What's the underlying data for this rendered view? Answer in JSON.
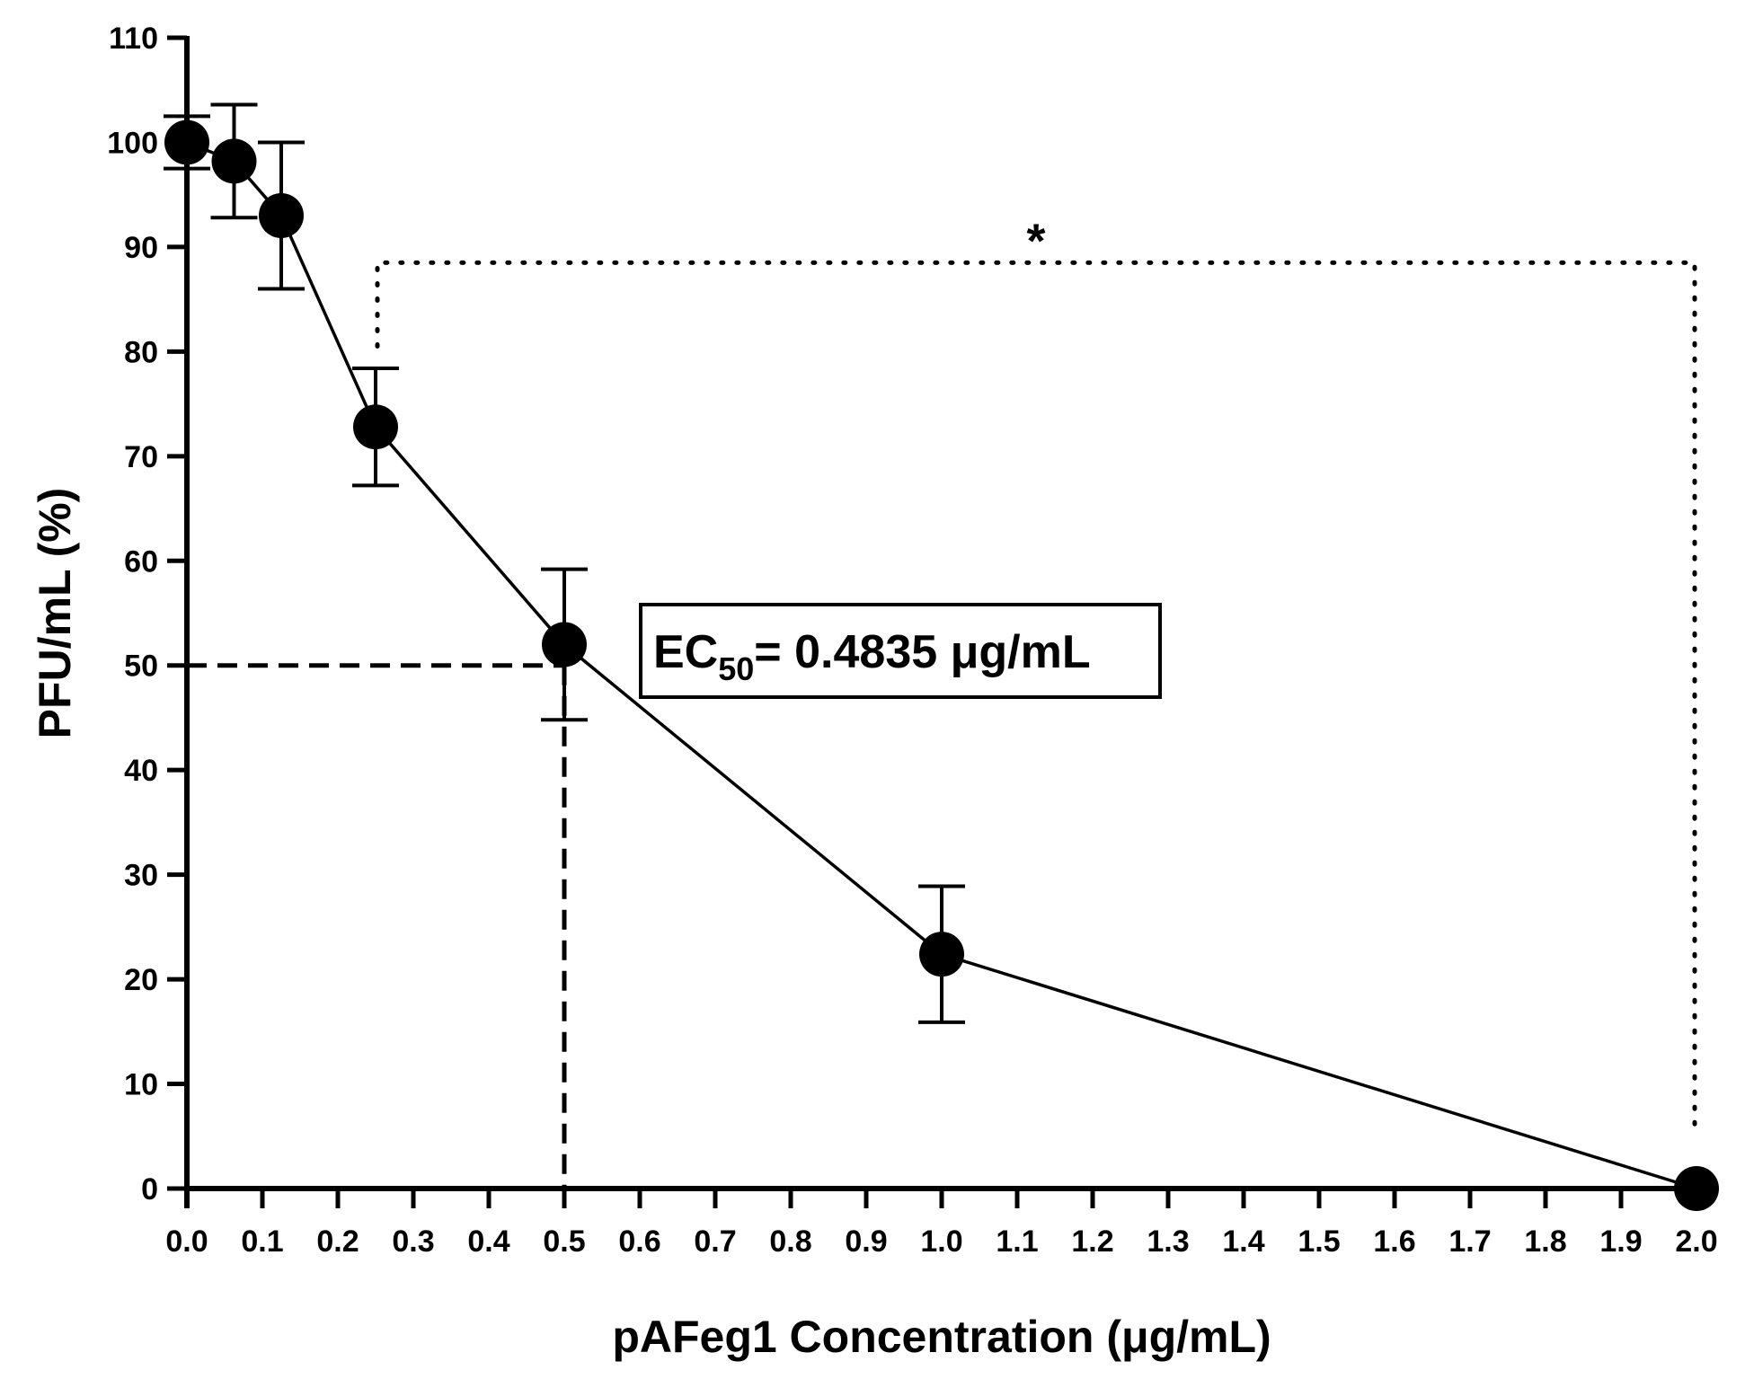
{
  "chart_data": {
    "type": "line",
    "xlabel": "pAFeg1 Concentration (μg/mL)",
    "ylabel": "PFU/mL (%)",
    "xlim": [
      0,
      2.0
    ],
    "ylim": [
      0,
      110
    ],
    "x_ticks": [
      "0.0",
      "0.1",
      "0.2",
      "0.3",
      "0.4",
      "0.5",
      "0.6",
      "0.7",
      "0.8",
      "0.9",
      "1.0",
      "1.1",
      "1.2",
      "1.3",
      "1.4",
      "1.5",
      "1.6",
      "1.7",
      "1.8",
      "1.9",
      "2.0"
    ],
    "y_ticks": [
      "0",
      "10",
      "20",
      "30",
      "40",
      "50",
      "60",
      "70",
      "80",
      "90",
      "100",
      "110"
    ],
    "grid": false,
    "series": [
      {
        "x": [
          0,
          0.0625,
          0.125,
          0.25,
          0.5,
          1.0,
          2.0
        ],
        "y": [
          100,
          98.2,
          93,
          72.8,
          52,
          22.4,
          0
        ],
        "error": [
          2.5,
          5.4,
          7,
          5.6,
          7.2,
          6.5,
          0
        ]
      }
    ],
    "annotations": {
      "ec50": {
        "label_main": "EC",
        "label_sub": "50",
        "label_rest": "= 0.4835 μg/mL",
        "x": 0.5,
        "y": 50
      },
      "significance": {
        "label": "*",
        "x_start": 0.25,
        "x_end": 2.0,
        "bracket_y": 88.5
      }
    },
    "colors": {
      "line": "#000000",
      "marker": "#000000"
    }
  }
}
